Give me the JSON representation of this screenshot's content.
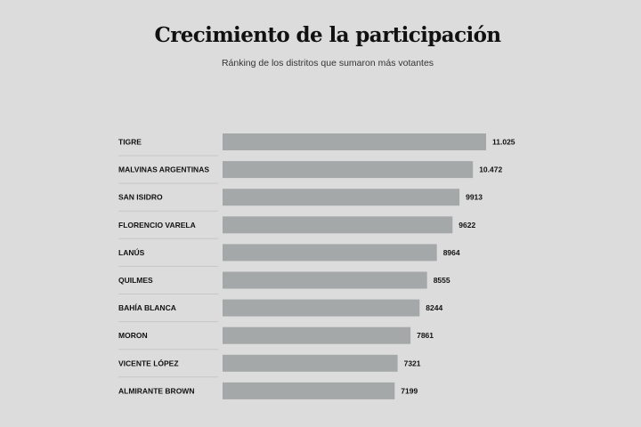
{
  "chart_data": {
    "type": "bar",
    "orientation": "horizontal",
    "title": "Crecimiento de la participación",
    "subtitle": "Ránking de los distritos que sumaron más votantes",
    "categories": [
      "TIGRE",
      "MALVINAS ARGENTINAS",
      "SAN ISIDRO",
      "FLORENCIO VARELA",
      "LANÚS",
      "QUILMES",
      "BAHÍA BLANCA",
      "MORON",
      "VICENTE LÓPEZ",
      "ALMIRANTE BROWN"
    ],
    "values": [
      11025,
      10472,
      9913,
      9622,
      8964,
      8555,
      8244,
      7861,
      7321,
      7199
    ],
    "value_labels": [
      "11.025",
      "10.472",
      "9913",
      "9622",
      "8964",
      "8555",
      "8244",
      "7861",
      "7321",
      "7199"
    ],
    "xlim": [
      0,
      11025
    ],
    "grid": false,
    "colors": {
      "bar": "#a5a8a8",
      "background": "#dcdcdc"
    }
  }
}
